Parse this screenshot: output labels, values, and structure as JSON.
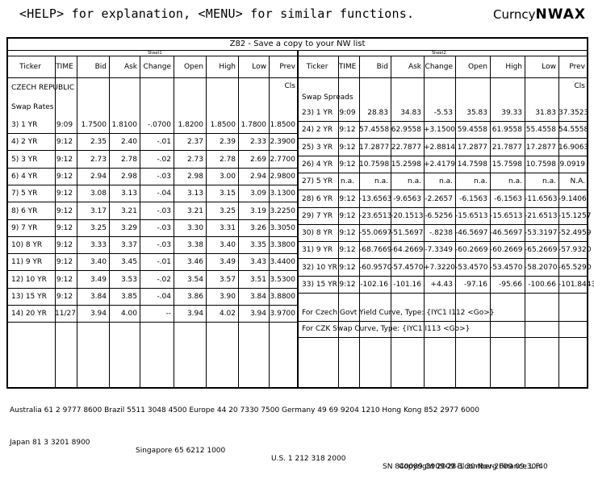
{
  "top": {
    "help_text": "<HELP> for explanation, <MENU> for similar functions.",
    "brand_prefix": "Curncy",
    "brand_function": "NWAX"
  },
  "title": "Z82 - Save a copy to your NW list",
  "sheet1": {
    "label": "Sheet1",
    "columns": [
      "Ticker",
      "TIME",
      "Bid",
      "Ask",
      "Change",
      "Open",
      "High",
      "Low",
      "Prev Cls"
    ],
    "country": "CZECH REPUBLIC",
    "section": "Swap Rates",
    "rows": [
      [
        "3) 1 YR",
        "9:09",
        "1.7500",
        "1.8100",
        "-.0700",
        "1.8200",
        "1.8500",
        "1.7800",
        "1.8500"
      ],
      [
        "4) 2 YR",
        "9:12",
        "2.35",
        "2.40",
        "-.01",
        "2.37",
        "2.39",
        "2.33",
        "2.3900"
      ],
      [
        "5) 3 YR",
        "9:12",
        "2.73",
        "2.78",
        "-.02",
        "2.73",
        "2.78",
        "2.69",
        "2.7700"
      ],
      [
        "6) 4 YR",
        "9:12",
        "2.94",
        "2.98",
        "-.03",
        "2.98",
        "3.00",
        "2.94",
        "2.9800"
      ],
      [
        "7) 5 YR",
        "9:12",
        "3.08",
        "3.13",
        "-.04",
        "3.13",
        "3.15",
        "3.09",
        "3.1300"
      ],
      [
        "8) 6 YR",
        "9:12",
        "3.17",
        "3.21",
        "-.03",
        "3.21",
        "3.25",
        "3.19",
        "3.2250"
      ],
      [
        "9) 7 YR",
        "9:12",
        "3.25",
        "3.29",
        "-.03",
        "3.30",
        "3.31",
        "3.26",
        "3.3050"
      ],
      [
        "10) 8 YR",
        "9:12",
        "3.33",
        "3.37",
        "-.03",
        "3.38",
        "3.40",
        "3.35",
        "3.3800"
      ],
      [
        "11) 9 YR",
        "9:12",
        "3.40",
        "3.45",
        "-.01",
        "3.46",
        "3.49",
        "3.43",
        "3.4400"
      ],
      [
        "12) 10 YR",
        "9:12",
        "3.49",
        "3.53",
        "-.02",
        "3.54",
        "3.57",
        "3.51",
        "3.5300"
      ],
      [
        "13) 15 YR",
        "9:12",
        "3.84",
        "3.85",
        "-.04",
        "3.86",
        "3.90",
        "3.84",
        "3.8800"
      ],
      [
        "14) 20 YR",
        "11/27",
        "3.94",
        "4.00",
        "--",
        "3.94",
        "4.02",
        "3.94",
        "3.9700"
      ]
    ]
  },
  "sheet2": {
    "label": "Sheet2",
    "columns": [
      "Ticker",
      "TIME",
      "Bid",
      "Ask",
      "Change",
      "Open",
      "High",
      "Low",
      "Prev Cls"
    ],
    "section": "Swap Spreads",
    "rows": [
      [
        "23) 1 YR",
        "9:09",
        "28.83",
        "34.83",
        "-5.53",
        "35.83",
        "39.33",
        "31.83",
        "37.3523"
      ],
      [
        "24) 2 YR",
        "9:12",
        "57.4558",
        "62.9558",
        "+3.1500",
        "59.4558",
        "61.9558",
        "55.4558",
        "54.5558"
      ],
      [
        "25) 3 YR",
        "9:12",
        "17.2877",
        "22.7877",
        "+2.8814",
        "17.2877",
        "21.7877",
        "17.2877",
        "16.9063"
      ],
      [
        "26) 4 YR",
        "9:12",
        "10.7598",
        "15.2598",
        "+2.4179",
        "14.7598",
        "15.7598",
        "10.7598",
        "9.0919"
      ],
      [
        "27) 5 YR",
        "n.a.",
        "n.a.",
        "n.a.",
        "n.a.",
        "n.a.",
        "n.a.",
        "n.a.",
        "N.A."
      ],
      [
        "28) 6 YR",
        "9:12",
        "-13.6563",
        "-9.6563",
        "-2.2657",
        "-6.1563",
        "-6.1563",
        "-11.6563",
        "-9.1406"
      ],
      [
        "29) 7 YR",
        "9:12",
        "-23.6513",
        "-20.1513",
        "-6.5256",
        "-15.6513",
        "-15.6513",
        "-21.6513",
        "-15.1257"
      ],
      [
        "30) 8 YR",
        "9:12",
        "-55.0697",
        "-51.5697",
        "-.8238",
        "-46.5697",
        "-46.5697",
        "-53.3197",
        "-52.4959"
      ],
      [
        "31) 9 YR",
        "9:12",
        "-68.7669",
        "-64.2669",
        "-7.3349",
        "-60.2669",
        "-60.2669",
        "-65.2669",
        "-57.9320"
      ],
      [
        "32) 10 YR",
        "9:12",
        "-60.9570",
        "-57.4570",
        "+7.3220",
        "-53.4570",
        "-53.4570",
        "-58.2070",
        "-65.5290"
      ],
      [
        "33) 15 YR",
        "9:12",
        "-102.16",
        "-101.16",
        "+4.43",
        "-97.16",
        "-95.66",
        "-100.66",
        "-101.8443"
      ]
    ],
    "note1": "For Czech Govt Yield Curve, Type: {IYC1 I112 <Go>}",
    "note2": "For CZK Swap Curve, Type: {IYC1 I113 <Go>}"
  },
  "footer": {
    "line1": "Australia 61 2 9777 8600 Brazil 5511 3048 4500 Europe 44 20 7330 7500 Germany 49 69 9204 1210 Hong Kong 852 2977 6000",
    "line2_left": "Japan 81 3 3201 8900",
    "line2_mid": "Singapore 65 6212 1000",
    "line2_mid2": "U.S. 1 212 318 2000",
    "line2_right": "Copyright 2009 Bloomberg Finance L.P.",
    "line3": "SN 840089 G909-28-1 30-Nov-2009 09:30:40"
  }
}
